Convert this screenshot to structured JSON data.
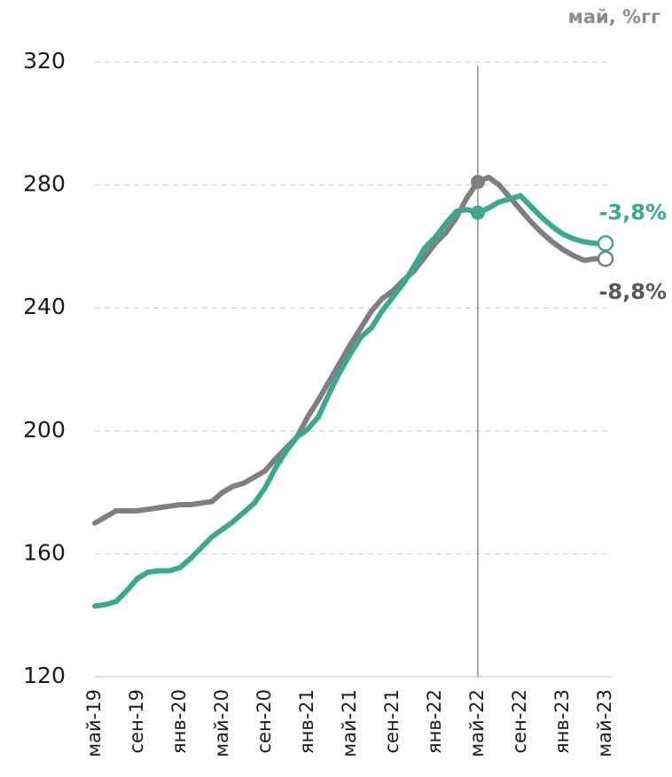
{
  "chart_data": {
    "type": "line",
    "subtitle": "май, %гг",
    "categories": [
      "май-19",
      null,
      null,
      null,
      "сен-19",
      null,
      null,
      null,
      "янв-20",
      null,
      null,
      null,
      "май-20",
      null,
      null,
      null,
      "сен-20",
      null,
      null,
      null,
      "янв-21",
      null,
      null,
      null,
      "май-21",
      null,
      null,
      null,
      "сен-21",
      null,
      null,
      null,
      "янв-22",
      null,
      null,
      null,
      "май-22",
      null,
      null,
      null,
      "сен-22",
      null,
      null,
      null,
      "янв-23",
      null,
      null,
      null,
      "май-23"
    ],
    "reference_line": "май-22",
    "ylim": [
      120,
      320
    ],
    "yticks": [
      120,
      160,
      200,
      240,
      280,
      320
    ],
    "grid": true,
    "series": [
      {
        "color": "#7f7f7f",
        "end_label": "-8,8%",
        "end_label_color": "#595959",
        "values": [
          170,
          172,
          174,
          174,
          174,
          174.5,
          175,
          175.5,
          176,
          176,
          176.5,
          177,
          180,
          182,
          183,
          185,
          187,
          191,
          194.5,
          198,
          204.5,
          210,
          216,
          222,
          228,
          233.5,
          239,
          243,
          245.5,
          249,
          252,
          256.5,
          261,
          264.5,
          269.5,
          276,
          281,
          282.5,
          280,
          276,
          272,
          268,
          264.5,
          261.5,
          259,
          257,
          255.5,
          256,
          256
        ]
      },
      {
        "color": "#3aaa8f",
        "end_label": "-3,8%",
        "end_label_color": "#3aaa8f",
        "values": [
          143,
          143.5,
          144.5,
          148,
          152,
          154,
          154.5,
          154.5,
          155.5,
          158.5,
          162,
          165.5,
          168,
          170.5,
          173.5,
          176.5,
          181.5,
          188,
          193.5,
          198,
          200.5,
          204.5,
          212,
          219,
          225,
          230.5,
          233.5,
          239,
          243.5,
          248,
          253.5,
          259.5,
          263,
          267.5,
          271.5,
          272,
          271,
          272.5,
          274.5,
          275.5,
          276.5,
          273,
          269.5,
          266.5,
          264,
          262.5,
          261.5,
          261,
          261
        ]
      }
    ]
  }
}
